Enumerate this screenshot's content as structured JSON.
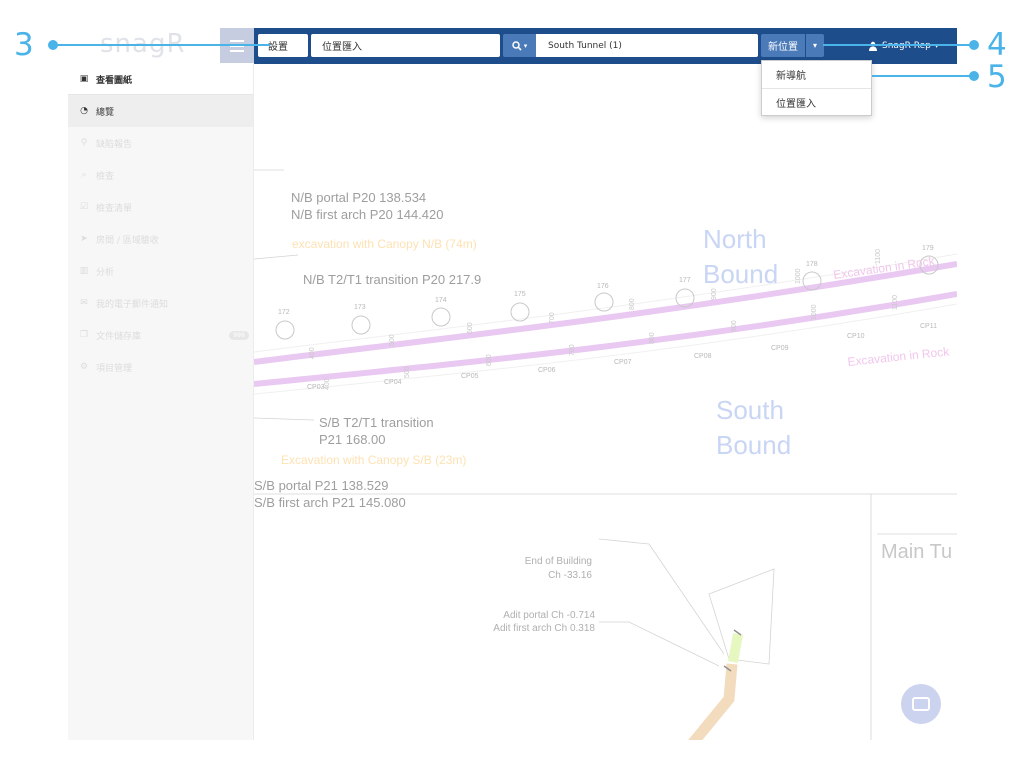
{
  "logo": "snagR",
  "topbar": {
    "settings_label": "設置",
    "location_import_label": "位置匯入",
    "search_icon": "search-icon",
    "search_value": "South Tunnel (1)",
    "new_location_label": "新位置",
    "user_name": "SnagR Rep"
  },
  "dropdown": {
    "items": [
      {
        "label": "新導航"
      },
      {
        "label": "位置匯入"
      }
    ]
  },
  "sidebar": {
    "items": [
      {
        "label": "查看圖紙",
        "icon": "image-icon"
      },
      {
        "label": "總覽",
        "icon": "dashboard-icon"
      },
      {
        "label": "缺陷報告",
        "icon": "map-marker-icon"
      },
      {
        "label": "檢查",
        "icon": "search-icon"
      },
      {
        "label": "檢查清單",
        "icon": "checkbox-icon"
      },
      {
        "label": "房間 / 區域驗收",
        "icon": "location-arrow-icon"
      },
      {
        "label": "分析",
        "icon": "bar-chart-icon"
      },
      {
        "label": "我的電子郵件通知",
        "icon": "envelope-icon"
      },
      {
        "label": "文件儲存庫",
        "icon": "copy-icon",
        "badge": "999"
      },
      {
        "label": "項目管理",
        "icon": "cogs-icon"
      }
    ]
  },
  "drawing": {
    "nb_portal": "N/B portal P20 138.534",
    "nb_first_arch": "N/B first arch P20 144.420",
    "nb_canopy": "excavation with Canopy N/B  (74m)",
    "nb_transition": "N/B T2/T1 transition P20 217.9",
    "north": "North",
    "north_bound": "Bound",
    "excavation_rock_top": "Excavation in Rock",
    "excavation_rock_bottom": "Excavation in Rock",
    "south": "South",
    "south_bound": "Bound",
    "sb_transition": "S/B T2/T1 transition",
    "sb_transition_ch": "P21 168.00",
    "sb_canopy": "Excavation with Canopy S/B (23m)",
    "sb_portal": "S/B portal P21 138.529",
    "sb_first_arch": "S/B first arch P21 145.080",
    "end_building": "End of Building",
    "end_building_ch": "Ch -33.16",
    "adit_portal": "Adit portal Ch -0.714",
    "adit_first_arch": "Adit first arch Ch 0.318",
    "main_title": "Main Tu",
    "markers": [
      "172",
      "173",
      "174",
      "175",
      "176",
      "177",
      "178",
      "179"
    ],
    "control_points": [
      "CP03",
      "CP04",
      "CP05",
      "CP06",
      "CP07",
      "CP08",
      "CP09",
      "CP10",
      "CP11"
    ]
  },
  "callouts": [
    "3",
    "4",
    "5"
  ],
  "colors": {
    "topbar": "#1e4d8c",
    "button": "#4a7ab8",
    "callout": "#4ab3e8",
    "alignment": "#e8c8ee"
  }
}
